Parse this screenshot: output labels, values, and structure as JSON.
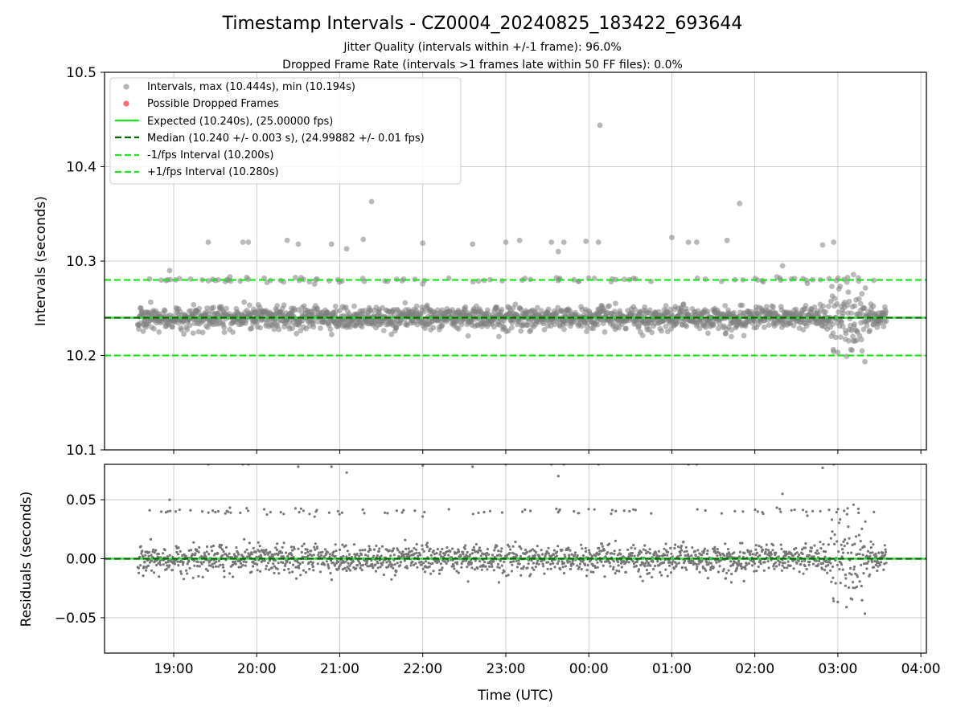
{
  "chart_data": [
    {
      "type": "scatter",
      "title": "Timestamp Intervals - CZ0004_20240825_183422_693644",
      "subtitle_lines": [
        "Jitter Quality (intervals within +/-1 frame): 96.0%",
        "Dropped Frame Rate (intervals >1 frames late within 50 FF files): 0.0%"
      ],
      "xlabel": "",
      "ylabel": "Intervals (seconds)",
      "xlim": [
        "18:10",
        "04:04"
      ],
      "ylim": [
        10.1,
        10.5
      ],
      "yticks": [
        10.1,
        10.2,
        10.3,
        10.4,
        10.5
      ],
      "ytick_labels": [
        "10.1",
        "10.2",
        "10.3",
        "10.4",
        "10.5"
      ],
      "grid": true,
      "legend_position": "top-left",
      "legend": [
        {
          "label": "Intervals, max (10.444s), min (10.194s)",
          "marker": "circle",
          "color": "#808080"
        },
        {
          "label": "Possible Dropped Frames",
          "marker": "circle",
          "color": "#ff5050"
        },
        {
          "label": "Expected (10.240s), (25.00000 fps)",
          "style": "solid",
          "color": "#1ee61e"
        },
        {
          "label": "Median (10.240 +/- 0.003 s), (24.99882 +/- 0.01 fps)",
          "style": "dashed",
          "color": "#006400"
        },
        {
          "label": "-1/fps Interval (10.200s)",
          "style": "dashed",
          "color": "#1ee61e"
        },
        {
          "label": "+1/fps Interval (10.280s)",
          "style": "dashed",
          "color": "#1ee61e"
        }
      ],
      "reference_lines": {
        "expected": 10.24,
        "median": 10.24,
        "minus_one_fps": 10.2,
        "plus_one_fps": 10.28
      },
      "series_summary": {
        "time_start": "18:34",
        "time_end": "03:35",
        "max": 10.444,
        "min": 10.194,
        "typical_spread": 0.006
      },
      "outliers": [
        {
          "time": "00:08",
          "y": 10.444
        },
        {
          "time": "21:23",
          "y": 10.363
        },
        {
          "time": "01:49",
          "y": 10.361
        },
        {
          "time": "19:25",
          "y": 10.32
        },
        {
          "time": "19:50",
          "y": 10.32
        },
        {
          "time": "19:54",
          "y": 10.32
        },
        {
          "time": "20:22",
          "y": 10.322
        },
        {
          "time": "20:30",
          "y": 10.318
        },
        {
          "time": "20:54",
          "y": 10.318
        },
        {
          "time": "21:17",
          "y": 10.323
        },
        {
          "time": "21:05",
          "y": 10.313
        },
        {
          "time": "22:00",
          "y": 10.319
        },
        {
          "time": "22:36",
          "y": 10.318
        },
        {
          "time": "23:00",
          "y": 10.32
        },
        {
          "time": "23:10",
          "y": 10.322
        },
        {
          "time": "23:33",
          "y": 10.32
        },
        {
          "time": "23:42",
          "y": 10.32
        },
        {
          "time": "23:58",
          "y": 10.321
        },
        {
          "time": "00:07",
          "y": 10.32
        },
        {
          "time": "23:38",
          "y": 10.31
        },
        {
          "time": "01:00",
          "y": 10.325
        },
        {
          "time": "01:12",
          "y": 10.32
        },
        {
          "time": "01:18",
          "y": 10.32
        },
        {
          "time": "01:40",
          "y": 10.322
        },
        {
          "time": "02:49",
          "y": 10.317
        },
        {
          "time": "02:57",
          "y": 10.32
        },
        {
          "time": "02:20",
          "y": 10.295
        },
        {
          "time": "18:57",
          "y": 10.29
        },
        {
          "time": "22:55",
          "y": 10.22
        },
        {
          "time": "01:43",
          "y": 10.22
        }
      ]
    },
    {
      "type": "scatter",
      "title": "",
      "xlabel": "Time (UTC)",
      "ylabel": "Residuals (seconds)",
      "xlim": [
        "18:10",
        "04:04"
      ],
      "ylim": [
        -0.08,
        0.08
      ],
      "yticks": [
        -0.05,
        0.0,
        0.05
      ],
      "ytick_labels": [
        "−0.05",
        "0.00",
        "0.05"
      ],
      "xticks": [
        "19:00",
        "20:00",
        "21:00",
        "22:00",
        "23:00",
        "00:00",
        "01:00",
        "02:00",
        "03:00",
        "04:00"
      ],
      "grid": true,
      "reference_lines": {
        "expected": 0.0,
        "median": 0.0
      },
      "series_summary": {
        "time_start": "18:34",
        "time_end": "03:35",
        "max": 0.08,
        "min": -0.046,
        "typical_spread": 0.006
      }
    }
  ]
}
